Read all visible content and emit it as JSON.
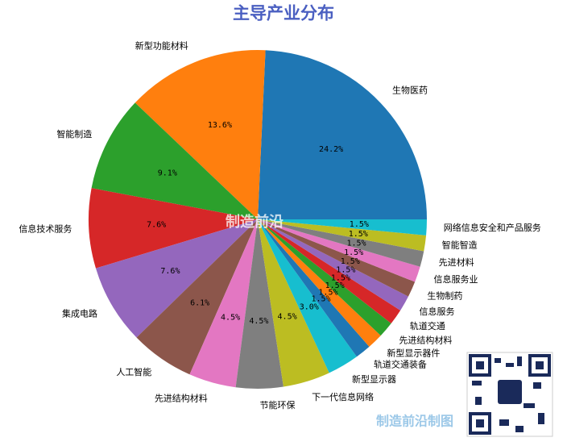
{
  "chart_data": {
    "type": "pie",
    "title": "主导产业分布",
    "categories": [
      "生物医药",
      "新型功能材料",
      "智能制造",
      "信息技术服务",
      "集成电路",
      "人工智能",
      "先进结构材料",
      "节能环保",
      "下一代信息网络",
      "新型显示器",
      "轨道交通装备",
      "新型显示器件",
      "先进结构材料",
      "轨道交通",
      "信息服务",
      "生物制药",
      "信息服务业",
      "先进材料",
      "智能智造",
      "网络信息安全和产品服务"
    ],
    "values": [
      24.2,
      13.6,
      9.1,
      7.6,
      7.6,
      6.1,
      4.5,
      4.5,
      4.5,
      3.0,
      1.5,
      1.5,
      1.5,
      1.5,
      1.5,
      1.5,
      1.5,
      1.5,
      1.5,
      1.5
    ],
    "value_labels": [
      "24.2%",
      "13.6%",
      "9.1%",
      "7.6%",
      "7.6%",
      "6.1%",
      "4.5%",
      "4.5%",
      "4.5%",
      "3.0%",
      "1.5%",
      "1.5%",
      "1.5%",
      "1.5%",
      "1.5%",
      "1.5%",
      "1.5%",
      "1.5%",
      "1.5%",
      "1.5%"
    ],
    "colors": [
      "#1f77b4",
      "#ff7f0e",
      "#2ca02c",
      "#d62728",
      "#9467bd",
      "#8c564b",
      "#e377c2",
      "#7f7f7f",
      "#bcbd22",
      "#17becf",
      "#1f77b4",
      "#ff7f0e",
      "#2ca02c",
      "#d62728",
      "#9467bd",
      "#8c564b",
      "#e377c2",
      "#7f7f7f",
      "#bcbd22",
      "#17becf"
    ],
    "watermark": "制造前沿",
    "footer_watermark": "制造前沿制图"
  }
}
